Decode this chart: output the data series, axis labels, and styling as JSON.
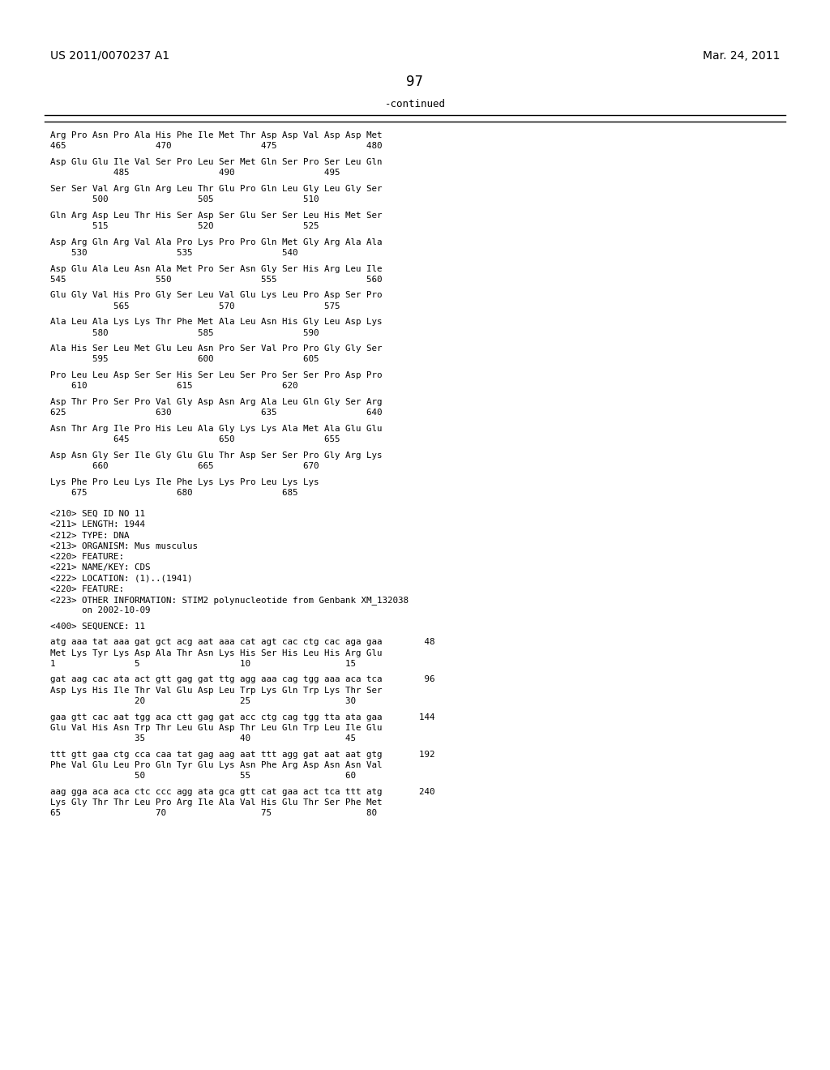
{
  "background_color": "#ffffff",
  "header_left": "US 2011/0070237 A1",
  "header_right": "Mar. 24, 2011",
  "page_number": "97",
  "continued_label": "-continued",
  "body_lines": [
    "Arg Pro Asn Pro Ala His Phe Ile Met Thr Asp Asp Val Asp Asp Met",
    "465                 470                 475                 480",
    "",
    "Asp Glu Glu Ile Val Ser Pro Leu Ser Met Gln Ser Pro Ser Leu Gln",
    "            485                 490                 495",
    "",
    "Ser Ser Val Arg Gln Arg Leu Thr Glu Pro Gln Leu Gly Leu Gly Ser",
    "        500                 505                 510",
    "",
    "Gln Arg Asp Leu Thr His Ser Asp Ser Glu Ser Ser Leu His Met Ser",
    "        515                 520                 525",
    "",
    "Asp Arg Gln Arg Val Ala Pro Lys Pro Pro Gln Met Gly Arg Ala Ala",
    "    530                 535                 540",
    "",
    "Asp Glu Ala Leu Asn Ala Met Pro Ser Asn Gly Ser His Arg Leu Ile",
    "545                 550                 555                 560",
    "",
    "Glu Gly Val His Pro Gly Ser Leu Val Glu Lys Leu Pro Asp Ser Pro",
    "            565                 570                 575",
    "",
    "Ala Leu Ala Lys Lys Thr Phe Met Ala Leu Asn His Gly Leu Asp Lys",
    "        580                 585                 590",
    "",
    "Ala His Ser Leu Met Glu Leu Asn Pro Ser Val Pro Pro Gly Gly Ser",
    "        595                 600                 605",
    "",
    "Pro Leu Leu Asp Ser Ser His Ser Leu Ser Pro Ser Ser Pro Asp Pro",
    "    610                 615                 620",
    "",
    "Asp Thr Pro Ser Pro Val Gly Asp Asn Arg Ala Leu Gln Gly Ser Arg",
    "625                 630                 635                 640",
    "",
    "Asn Thr Arg Ile Pro His Leu Ala Gly Lys Lys Ala Met Ala Glu Glu",
    "            645                 650                 655",
    "",
    "Asp Asn Gly Ser Ile Gly Glu Glu Thr Asp Ser Ser Pro Gly Arg Lys",
    "        660                 665                 670",
    "",
    "Lys Phe Pro Leu Lys Ile Phe Lys Lys Pro Leu Lys Lys",
    "    675                 680                 685",
    "",
    "",
    "<210> SEQ ID NO 11",
    "<211> LENGTH: 1944",
    "<212> TYPE: DNA",
    "<213> ORGANISM: Mus musculus",
    "<220> FEATURE:",
    "<221> NAME/KEY: CDS",
    "<222> LOCATION: (1)..(1941)",
    "<220> FEATURE:",
    "<223> OTHER INFORMATION: STIM2 polynucleotide from Genbank XM_132038",
    "      on 2002-10-09",
    "",
    "<400> SEQUENCE: 11",
    "",
    "atg aaa tat aaa gat gct acg aat aaa cat agt cac ctg cac aga gaa        48",
    "Met Lys Tyr Lys Asp Ala Thr Asn Lys His Ser His Leu His Arg Glu",
    "1               5                   10                  15",
    "",
    "gat aag cac ata act gtt gag gat ttg agg aaa cag tgg aaa aca tca        96",
    "Asp Lys His Ile Thr Val Glu Asp Leu Trp Lys Gln Trp Lys Thr Ser",
    "                20                  25                  30",
    "",
    "gaa gtt cac aat tgg aca ctt gag gat acc ctg cag tgg tta ata gaa       144",
    "Glu Val His Asn Trp Thr Leu Glu Asp Thr Leu Gln Trp Leu Ile Glu",
    "                35                  40                  45",
    "",
    "ttt gtt gaa ctg cca caa tat gag aag aat ttt agg gat aat aat gtg       192",
    "Phe Val Glu Leu Pro Gln Tyr Glu Lys Asn Phe Arg Asp Asn Asn Val",
    "                50                  55                  60",
    "",
    "aag gga aca aca ctc ccc agg ata gca gtt cat gaa act tca ttt atg       240",
    "Lys Gly Thr Thr Leu Pro Arg Ile Ala Val His Glu Thr Ser Phe Met",
    "65                  70                  75                  80"
  ]
}
